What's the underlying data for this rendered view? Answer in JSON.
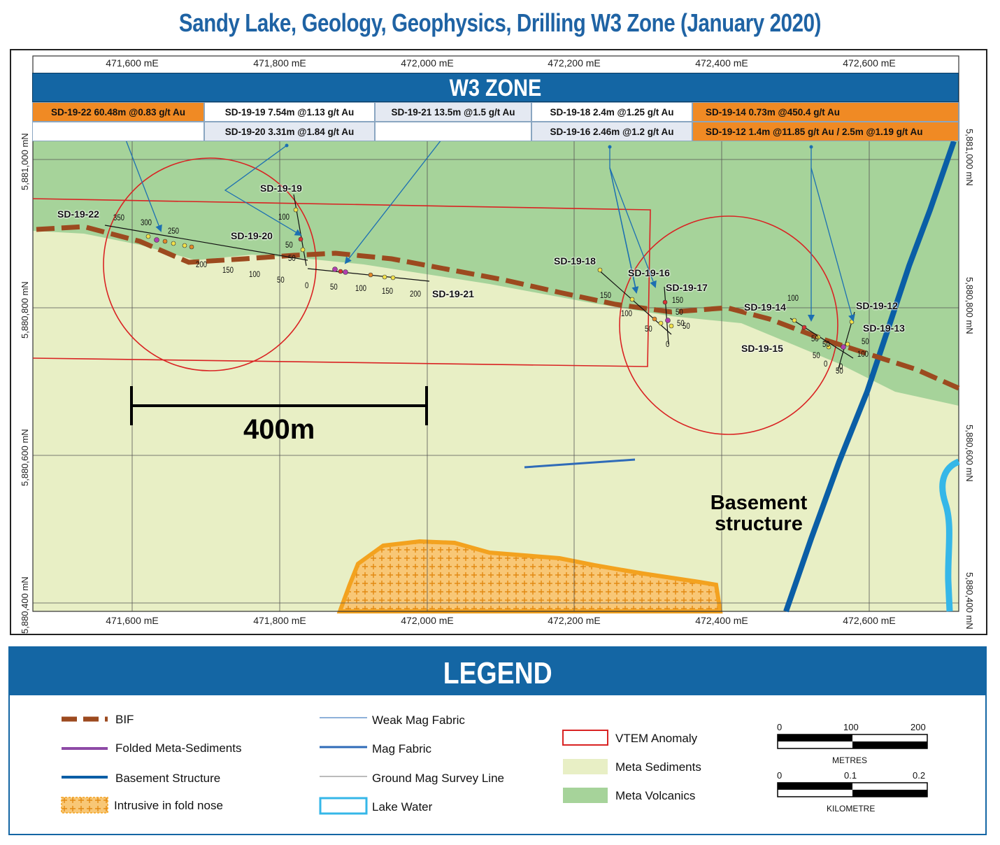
{
  "title": "Sandy Lake, Geology, Geophysics, Drilling W3 Zone (January 2020)",
  "map": {
    "easting_labels": [
      "471,600 mE",
      "471,800 mE",
      "472,000 mE",
      "472,200 mE",
      "472,400 mE",
      "472,600 mE"
    ],
    "northing_labels": [
      "5,881,000 mN",
      "5,880,800 mN",
      "5,880,600 mN",
      "5,880,400 mN"
    ],
    "zone_title": "W3 ZONE",
    "results": [
      {
        "text": "SD-19-22 60.48m @0.83 g/t Au",
        "style": "orange"
      },
      {
        "text": "SD-19-19 7.54m @1.13 g/t Au",
        "style": "white"
      },
      {
        "text": "SD-19-20 3.31m @1.84 g/t Au",
        "style": "grey"
      },
      {
        "text": "SD-19-21 13.5m @1.5 g/t Au",
        "style": "grey"
      },
      {
        "text": "SD-19-18 2.4m @1.25 g/t Au",
        "style": "white"
      },
      {
        "text": "SD-19-16 2.46m @1.2 g/t Au",
        "style": "grey"
      },
      {
        "text": "SD-19-14 0.73m @450.4 g/t Au",
        "style": "orange"
      },
      {
        "text": "SD-19-12 1.4m @11.85 g/t Au  /  2.5m @1.19 g/t Au",
        "style": "orange"
      }
    ],
    "holes": [
      "SD-19-22",
      "SD-19-19",
      "SD-19-20",
      "SD-19-21",
      "SD-19-18",
      "SD-19-16",
      "SD-19-17",
      "SD-19-14",
      "SD-19-12",
      "SD-19-13",
      "SD-19-15"
    ],
    "depth_ticks": [
      "350",
      "300",
      "250",
      "200",
      "150",
      "100",
      "50",
      "0",
      "100",
      "50",
      "50",
      "50",
      "100",
      "150",
      "200",
      "150",
      "100",
      "50",
      "0",
      "150",
      "50",
      "100",
      "50",
      "0",
      "50",
      "50",
      "100",
      "50",
      "50",
      "0",
      "50",
      "50"
    ],
    "scale_label": "400m",
    "basement_label": [
      "Basement",
      "structure"
    ]
  },
  "legend": {
    "heading": "LEGEND",
    "items": [
      {
        "label": "BIF",
        "symbol": "bif-dashed-line"
      },
      {
        "label": "Folded Meta-Sediments",
        "symbol": "purple-line"
      },
      {
        "label": "Basement Structure",
        "symbol": "dark-blue-line"
      },
      {
        "label": "Intrusive in fold nose",
        "symbol": "orange-cross-hatch"
      },
      {
        "label": "Weak Mag Fabric",
        "symbol": "thin-blue-line"
      },
      {
        "label": "Mag Fabric",
        "symbol": "blue-line"
      },
      {
        "label": "Ground Mag Survey Line",
        "symbol": "grey-line"
      },
      {
        "label": "Lake Water",
        "symbol": "cyan-outline"
      },
      {
        "label": "VTEM Anomaly",
        "symbol": "red-outline"
      },
      {
        "label": "Meta Sediments",
        "symbol": "pale-green-fill"
      },
      {
        "label": "Meta Volcanics",
        "symbol": "green-fill"
      }
    ],
    "scalebar_metres": {
      "ticks": [
        "0",
        "100",
        "200"
      ],
      "caption": "METRES"
    },
    "scalebar_km": {
      "ticks": [
        "0",
        "0.1",
        "0.2"
      ],
      "caption": "KILOMETRE"
    }
  },
  "colors": {
    "title_blue": "#1f63a4",
    "meta_sediments": "#e8efc5",
    "meta_volcanics": "#a6d39a",
    "bif": "#9c4a1f",
    "vtem": "#d92323",
    "basement": "#0a5ea6",
    "lake": "#35b7e8",
    "intrusive": "#f5a623"
  }
}
